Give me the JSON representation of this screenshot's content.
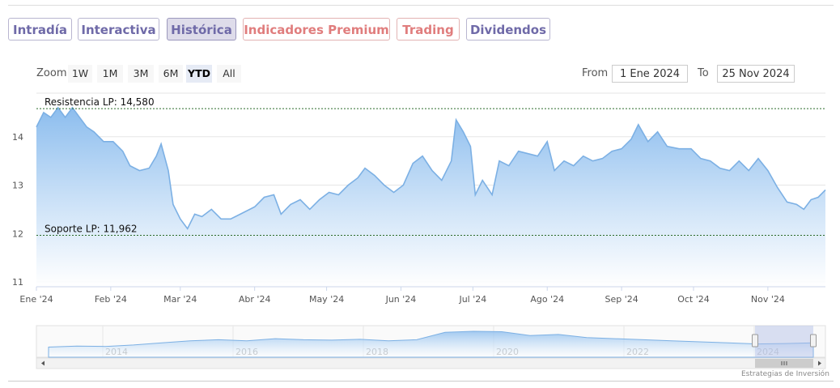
{
  "tabs": [
    {
      "label": "Intradía",
      "color": "purple",
      "active": false
    },
    {
      "label": "Interactiva",
      "color": "purple",
      "active": false
    },
    {
      "label": "Histórica",
      "color": "purple",
      "active": true
    },
    {
      "label": "Indicadores Premium",
      "color": "red",
      "active": false
    },
    {
      "label": "Trading",
      "color": "red",
      "active": false
    },
    {
      "label": "Dividendos",
      "color": "purple",
      "active": false
    }
  ],
  "zoom": {
    "label": "Zoom",
    "buttons": [
      {
        "label": "1W",
        "selected": false
      },
      {
        "label": "1M",
        "selected": false
      },
      {
        "label": "3M",
        "selected": false
      },
      {
        "label": "6M",
        "selected": false
      },
      {
        "label": "YTD",
        "selected": true
      },
      {
        "label": "All",
        "selected": false
      }
    ]
  },
  "range": {
    "from_label": "From",
    "from_value": "1 Ene 2024",
    "to_label": "To",
    "to_value": "25 Nov 2024"
  },
  "credits": "Estrategias de Inversión",
  "colors": {
    "line": "#7cb0e4",
    "fill_top": "#8cbdee",
    "fill_bottom": "#ffffff",
    "grid": "#e6e6e6",
    "tab_purple": "#6f6aa8",
    "tab_red": "#e07d7d"
  },
  "chart_data": {
    "type": "area",
    "title": "",
    "xlabel": "",
    "ylabel": "",
    "ylim": [
      10.9,
      14.9
    ],
    "yticks": [
      11,
      12,
      13,
      14
    ],
    "xlim": [
      "2024-01-01",
      "2024-11-25"
    ],
    "xticks": [
      {
        "date": "2024-01-01",
        "label": "Ene '24"
      },
      {
        "date": "2024-02-01",
        "label": "Feb '24"
      },
      {
        "date": "2024-03-01",
        "label": "Mar '24"
      },
      {
        "date": "2024-04-01",
        "label": "Abr '24"
      },
      {
        "date": "2024-05-01",
        "label": "May '24"
      },
      {
        "date": "2024-06-01",
        "label": "Jun '24"
      },
      {
        "date": "2024-07-01",
        "label": "Jul '24"
      },
      {
        "date": "2024-08-01",
        "label": "Ago '24"
      },
      {
        "date": "2024-09-01",
        "label": "Sep '24"
      },
      {
        "date": "2024-10-01",
        "label": "Oct '24"
      },
      {
        "date": "2024-11-01",
        "label": "Nov '24"
      }
    ],
    "grid": true,
    "reference_lines": [
      {
        "label": "Resistencia LP: 14,580",
        "value": 14.58,
        "color": "#2a6a2a"
      },
      {
        "label": "Soporte LP: 11,962",
        "value": 11.962,
        "color": "#2a6a2a"
      }
    ],
    "series": [
      {
        "points": [
          [
            "2024-01-01",
            14.2
          ],
          [
            "2024-01-04",
            14.5
          ],
          [
            "2024-01-07",
            14.4
          ],
          [
            "2024-01-10",
            14.6
          ],
          [
            "2024-01-13",
            14.4
          ],
          [
            "2024-01-16",
            14.6
          ],
          [
            "2024-01-19",
            14.4
          ],
          [
            "2024-01-22",
            14.2
          ],
          [
            "2024-01-25",
            14.1
          ],
          [
            "2024-01-29",
            13.9
          ],
          [
            "2024-02-02",
            13.9
          ],
          [
            "2024-02-06",
            13.7
          ],
          [
            "2024-02-09",
            13.4
          ],
          [
            "2024-02-13",
            13.3
          ],
          [
            "2024-02-17",
            13.35
          ],
          [
            "2024-02-20",
            13.6
          ],
          [
            "2024-02-22",
            13.85
          ],
          [
            "2024-02-25",
            13.3
          ],
          [
            "2024-02-27",
            12.6
          ],
          [
            "2024-03-01",
            12.3
          ],
          [
            "2024-03-04",
            12.1
          ],
          [
            "2024-03-07",
            12.4
          ],
          [
            "2024-03-10",
            12.35
          ],
          [
            "2024-03-14",
            12.5
          ],
          [
            "2024-03-18",
            12.3
          ],
          [
            "2024-03-22",
            12.3
          ],
          [
            "2024-03-26",
            12.4
          ],
          [
            "2024-04-01",
            12.55
          ],
          [
            "2024-04-05",
            12.75
          ],
          [
            "2024-04-09",
            12.8
          ],
          [
            "2024-04-12",
            12.4
          ],
          [
            "2024-04-16",
            12.6
          ],
          [
            "2024-04-20",
            12.7
          ],
          [
            "2024-04-24",
            12.5
          ],
          [
            "2024-04-28",
            12.7
          ],
          [
            "2024-05-02",
            12.85
          ],
          [
            "2024-05-06",
            12.8
          ],
          [
            "2024-05-10",
            13.0
          ],
          [
            "2024-05-14",
            13.15
          ],
          [
            "2024-05-17",
            13.35
          ],
          [
            "2024-05-21",
            13.2
          ],
          [
            "2024-05-25",
            13.0
          ],
          [
            "2024-05-29",
            12.85
          ],
          [
            "2024-06-02",
            13.0
          ],
          [
            "2024-06-06",
            13.45
          ],
          [
            "2024-06-10",
            13.6
          ],
          [
            "2024-06-14",
            13.3
          ],
          [
            "2024-06-18",
            13.1
          ],
          [
            "2024-06-22",
            13.5
          ],
          [
            "2024-06-24",
            14.35
          ],
          [
            "2024-06-27",
            14.1
          ],
          [
            "2024-06-30",
            13.8
          ],
          [
            "2024-07-02",
            12.8
          ],
          [
            "2024-07-05",
            13.1
          ],
          [
            "2024-07-09",
            12.8
          ],
          [
            "2024-07-12",
            13.5
          ],
          [
            "2024-07-16",
            13.4
          ],
          [
            "2024-07-20",
            13.7
          ],
          [
            "2024-07-24",
            13.65
          ],
          [
            "2024-07-28",
            13.6
          ],
          [
            "2024-08-01",
            13.9
          ],
          [
            "2024-08-04",
            13.3
          ],
          [
            "2024-08-08",
            13.5
          ],
          [
            "2024-08-12",
            13.4
          ],
          [
            "2024-08-16",
            13.6
          ],
          [
            "2024-08-20",
            13.5
          ],
          [
            "2024-08-24",
            13.55
          ],
          [
            "2024-08-28",
            13.7
          ],
          [
            "2024-09-01",
            13.75
          ],
          [
            "2024-09-05",
            13.95
          ],
          [
            "2024-09-08",
            14.25
          ],
          [
            "2024-09-12",
            13.9
          ],
          [
            "2024-09-16",
            14.1
          ],
          [
            "2024-09-20",
            13.8
          ],
          [
            "2024-09-25",
            13.75
          ],
          [
            "2024-09-30",
            13.75
          ],
          [
            "2024-10-04",
            13.55
          ],
          [
            "2024-10-08",
            13.5
          ],
          [
            "2024-10-12",
            13.35
          ],
          [
            "2024-10-16",
            13.3
          ],
          [
            "2024-10-20",
            13.5
          ],
          [
            "2024-10-24",
            13.3
          ],
          [
            "2024-10-28",
            13.55
          ],
          [
            "2024-11-01",
            13.3
          ],
          [
            "2024-11-05",
            12.95
          ],
          [
            "2024-11-09",
            12.65
          ],
          [
            "2024-11-13",
            12.6
          ],
          [
            "2024-11-16",
            12.5
          ],
          [
            "2024-11-19",
            12.7
          ],
          [
            "2024-11-22",
            12.75
          ],
          [
            "2024-11-25",
            12.9
          ]
        ]
      }
    ],
    "navigator": {
      "xticks": [
        "2014",
        "2016",
        "2018",
        "2020",
        "2022",
        "2024"
      ],
      "series": [
        0.25,
        0.3,
        0.28,
        0.35,
        0.45,
        0.55,
        0.6,
        0.55,
        0.65,
        0.6,
        0.58,
        0.62,
        0.55,
        0.6,
        0.95,
        1.0,
        0.98,
        0.8,
        0.85,
        0.7,
        0.65,
        0.6,
        0.55,
        0.5,
        0.45,
        0.4,
        0.42,
        0.45
      ]
    }
  }
}
